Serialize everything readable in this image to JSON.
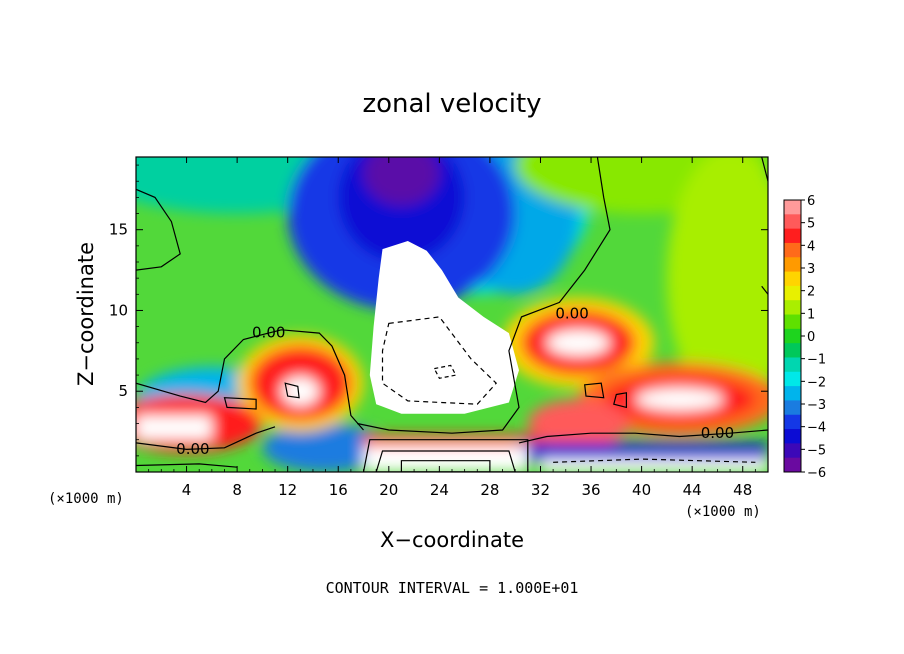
{
  "chart_data": {
    "type": "heatmap",
    "title": "zonal velocity",
    "xlabel": "X−coordinate",
    "ylabel": "Z−coordinate",
    "x_unit": "(×1000 m)",
    "y_unit": "(×1000 m)",
    "xlim": [
      0,
      50
    ],
    "ylim": [
      0,
      19.5
    ],
    "xticks": [
      4,
      8,
      12,
      16,
      20,
      24,
      28,
      32,
      36,
      40,
      44,
      48
    ],
    "yticks": [
      5,
      10,
      15
    ],
    "colorbar": {
      "ticks": [
        6,
        5,
        4,
        3,
        2,
        1,
        0,
        -1,
        -2,
        -3,
        -4,
        -5,
        -6
      ],
      "tick_labels": [
        "6",
        "5",
        "4",
        "3",
        "2",
        "1",
        "0",
        "−1",
        "−2",
        "−3",
        "−4",
        "−5",
        "−6"
      ],
      "colors": [
        "#ff9a9a",
        "#ff5a5a",
        "#ff1e1e",
        "#ff6a1a",
        "#ff9a00",
        "#ffd400",
        "#e8f000",
        "#aaee00",
        "#5fe000",
        "#1ed41e",
        "#00c85a",
        "#00d6b0",
        "#00e8e8",
        "#00b4ec",
        "#1a7ce0",
        "#1438e6",
        "#0c0cd4",
        "#3c08b8",
        "#6a0aa0"
      ]
    },
    "contour_labels": [
      {
        "text": "0.00",
        "x": 10.5,
        "z": 8.5
      },
      {
        "text": "0.00",
        "x": 34.5,
        "z": 9.7
      },
      {
        "text": "0.00",
        "x": 46.0,
        "z": 2.3
      },
      {
        "text": "0.00",
        "x": 4.5,
        "z": 1.3
      }
    ],
    "field_features": [
      {
        "kind": "blob",
        "cx": 18,
        "cz": 18.5,
        "rx": 10,
        "rz": 3.5,
        "value": -6
      },
      {
        "kind": "blob",
        "cx": 22,
        "cz": 7,
        "rx": 6,
        "rz": 6,
        "value": -12
      },
      {
        "kind": "blob",
        "cx": 35,
        "cz": 8,
        "rx": 3.5,
        "rz": 1.5,
        "value": 8
      },
      {
        "kind": "blob",
        "cx": 13,
        "cz": 5.5,
        "rx": 3,
        "rz": 2,
        "value": 7
      },
      {
        "kind": "blob",
        "cx": 42,
        "cz": 4.5,
        "rx": 7,
        "rz": 1.5,
        "value": 7
      },
      {
        "kind": "blob",
        "cx": 25,
        "cz": 1.2,
        "rx": 9,
        "rz": 1.2,
        "value": 8
      },
      {
        "kind": "blob",
        "cx": 40,
        "cz": 0.8,
        "rx": 10,
        "rz": 0.8,
        "value": 7
      },
      {
        "kind": "blob",
        "cx": 3,
        "cz": 3,
        "rx": 4,
        "rz": 1,
        "value": 7
      }
    ],
    "grid": false,
    "legend": "colorbar-right"
  },
  "footer_text": "CONTOUR INTERVAL = 1.000E+01"
}
